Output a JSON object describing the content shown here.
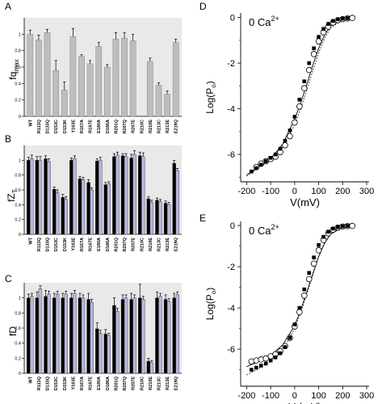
{
  "chart_data": [
    {
      "panel": "A",
      "type": "bar",
      "ylabel": "fq",
      "ylabel_sub": "max",
      "ylim": [
        0,
        1.2
      ],
      "yticks": [
        0,
        0.2,
        0.4,
        0.6,
        0.8,
        1
      ],
      "categories": [
        "WT",
        "R113Q",
        "D133Q",
        "D153C",
        "D153K",
        "Y163E",
        "R167A",
        "R167E",
        "E180A",
        "D186A",
        "R201Q",
        "R207Q",
        "R207E",
        "R210C",
        "R210E",
        "R213C",
        "R213E",
        "E219Q"
      ],
      "series": [
        {
          "values": [
            1.0,
            0.93,
            1.02,
            0.56,
            0.32,
            0.97,
            0.73,
            0.64,
            0.85,
            0.6,
            0.94,
            0.95,
            0.92,
            null,
            0.67,
            0.38,
            0.27,
            0.9
          ],
          "errors": [
            0.05,
            0.06,
            0.04,
            0.12,
            0.1,
            0.1,
            0.02,
            0.04,
            0.05,
            0.03,
            0.08,
            0.07,
            0.08,
            null,
            0.04,
            0.03,
            0.04,
            0.04
          ]
        }
      ],
      "colors": {
        "bar": "#bdbdbd",
        "panel_bg": "#e9e9e9"
      }
    },
    {
      "panel": "B",
      "type": "bar",
      "ylabel": "fZ",
      "ylabel_sub": "T",
      "ylim": [
        0,
        1.2
      ],
      "yticks": [
        0,
        0.2,
        0.4,
        0.6,
        0.8,
        1
      ],
      "categories": [
        "WT",
        "R113Q",
        "D133Q",
        "D153C",
        "D153K",
        "Y163E",
        "R167A",
        "R167E",
        "E180A",
        "D186A",
        "R201Q",
        "R207Q",
        "R207E",
        "R210C",
        "R210E",
        "R213C",
        "R213E",
        "E219Q"
      ],
      "series": [
        {
          "values": [
            1.0,
            1.0,
            1.02,
            0.61,
            0.5,
            1.0,
            0.75,
            0.7,
            0.99,
            0.67,
            1.05,
            1.06,
            1.03,
            1.06,
            0.48,
            0.46,
            0.42,
            0.96
          ],
          "errors": [
            0.04,
            0.05,
            0.04,
            0.03,
            0.04,
            0.03,
            0.03,
            0.04,
            0.03,
            0.03,
            0.04,
            0.03,
            0.05,
            0.05,
            0.03,
            0.03,
            0.03,
            0.04
          ]
        },
        {
          "values": [
            1.02,
            1.0,
            0.98,
            0.56,
            0.47,
            1.02,
            0.74,
            0.6,
            1.0,
            0.68,
            1.07,
            1.05,
            1.08,
            1.05,
            0.43,
            0.44,
            0.4,
            0.86
          ],
          "errors": [
            0.05,
            0.05,
            0.04,
            0.04,
            0.04,
            0.04,
            0.03,
            0.03,
            0.04,
            0.03,
            0.04,
            0.04,
            0.05,
            0.05,
            0.03,
            0.03,
            0.03,
            0.03
          ]
        }
      ],
      "colors": {
        "series1": "#000000",
        "series2": "#b7b7dd",
        "panel_bg": "#e9e9e9"
      }
    },
    {
      "panel": "C",
      "type": "bar",
      "ylabel": "fD",
      "ylim": [
        0,
        1.2
      ],
      "yticks": [
        0,
        0.2,
        0.4,
        0.6,
        0.8,
        1
      ],
      "categories": [
        "WT",
        "R113Q",
        "D133Q",
        "D153C",
        "D153K",
        "Y163E",
        "R167A",
        "R167E",
        "E180A",
        "D186A",
        "R201Q",
        "R207Q",
        "R207E",
        "R210C",
        "R210E",
        "R213C",
        "R213E",
        "E219Q"
      ],
      "series": [
        {
          "values": [
            1.0,
            1.0,
            1.02,
            1.0,
            1.0,
            1.0,
            1.0,
            0.98,
            0.59,
            0.52,
            0.9,
            0.98,
            0.98,
            1.0,
            0.16,
            1.0,
            0.98,
            1.0
          ],
          "errors": [
            0.05,
            0.08,
            0.08,
            0.06,
            0.06,
            0.06,
            0.06,
            0.08,
            0.08,
            0.06,
            0.1,
            0.06,
            0.08,
            0.18,
            0.04,
            0.08,
            0.06,
            0.06
          ]
        },
        {
          "values": [
            1.02,
            1.12,
            1.05,
            1.05,
            1.05,
            1.06,
            1.0,
            0.94,
            0.53,
            0.5,
            0.82,
            1.0,
            1.0,
            0.98,
            0.14,
            1.02,
            0.95,
            1.04
          ],
          "errors": [
            0.04,
            0.04,
            0.04,
            0.04,
            0.04,
            0.04,
            0.04,
            0.04,
            0.04,
            0.03,
            0.04,
            0.04,
            0.04,
            0.04,
            0.03,
            0.04,
            0.04,
            0.04
          ]
        }
      ],
      "colors": {
        "series1": "#000000",
        "series2": "#b7b7dd",
        "panel_bg": "#e9e9e9"
      }
    },
    {
      "panel": "D",
      "type": "scatter",
      "annotation": "0 Ca",
      "annotation_sup": "2+",
      "xlabel": "V(mV)",
      "ylabel": "Log(P",
      "ylabel_sub": "o",
      "ylabel_end": ")",
      "xlim": [
        -225,
        310
      ],
      "ylim": [
        -7.2,
        0.2
      ],
      "xticks": [
        -200,
        -100,
        0,
        100,
        200,
        300
      ],
      "yticks": [
        0,
        -2,
        -4,
        -6
      ],
      "grid": false,
      "series": [
        {
          "marker": "open-circle",
          "x": [
            -160,
            -140,
            -120,
            -100,
            -80,
            -60,
            -40,
            -20,
            0,
            20,
            40,
            60,
            80,
            100,
            120,
            140,
            160,
            180,
            200,
            220,
            240
          ],
          "y": [
            -6.55,
            -6.4,
            -6.3,
            -6.2,
            -6.1,
            -5.9,
            -5.6,
            -5.2,
            -4.6,
            -3.9,
            -3.1,
            -2.3,
            -1.6,
            -1.05,
            -0.65,
            -0.4,
            -0.22,
            -0.12,
            -0.07,
            -0.04,
            -0.02
          ]
        },
        {
          "marker": "filled-square",
          "x": [
            -180,
            -160,
            -140,
            -120,
            -100,
            -80,
            -60,
            -40,
            -20,
            0,
            20,
            40,
            60,
            80,
            100,
            120,
            140,
            160,
            180,
            200,
            220
          ],
          "y": [
            -6.75,
            -6.6,
            -6.45,
            -6.3,
            -6.15,
            -6.0,
            -5.75,
            -5.4,
            -4.95,
            -4.35,
            -3.6,
            -2.8,
            -2.0,
            -1.35,
            -0.85,
            -0.5,
            -0.28,
            -0.15,
            -0.08,
            -0.05,
            -0.03
          ]
        }
      ],
      "fit_curves": [
        {
          "style": "solid",
          "x": [
            -200,
            -150,
            -100,
            -50,
            0,
            25,
            50,
            75,
            100,
            125,
            150,
            200,
            250
          ],
          "y": [
            -6.9,
            -6.55,
            -6.2,
            -5.55,
            -4.45,
            -3.75,
            -2.95,
            -2.1,
            -1.35,
            -0.75,
            -0.38,
            -0.08,
            -0.02
          ]
        },
        {
          "style": "dotted",
          "x": [
            -200,
            -150,
            -100,
            -50,
            0,
            25,
            50,
            75,
            100,
            125,
            150,
            200,
            250
          ],
          "y": [
            -6.95,
            -6.6,
            -6.25,
            -5.7,
            -4.7,
            -4.0,
            -3.2,
            -2.35,
            -1.55,
            -0.9,
            -0.45,
            -0.1,
            -0.02
          ]
        }
      ]
    },
    {
      "panel": "E",
      "type": "scatter",
      "annotation": "0 Ca",
      "annotation_sup": "2+",
      "xlabel": "V (mV)",
      "ylabel": "Log(P",
      "ylabel_sub": "o",
      "ylabel_end": ")",
      "xlim": [
        -225,
        310
      ],
      "ylim": [
        -7.8,
        0.2
      ],
      "xticks": [
        -200,
        -100,
        0,
        100,
        200,
        300
      ],
      "yticks": [
        0,
        -2,
        -4,
        -6
      ],
      "grid": false,
      "series": [
        {
          "marker": "open-circle",
          "x": [
            -180,
            -160,
            -140,
            -120,
            -100,
            -80,
            -60,
            -40,
            -20,
            0,
            20,
            40,
            60,
            80,
            100,
            120,
            140,
            160,
            180,
            200,
            220,
            240
          ],
          "y": [
            -6.6,
            -6.55,
            -6.5,
            -6.45,
            -6.35,
            -6.25,
            -6.1,
            -5.85,
            -5.45,
            -4.9,
            -4.2,
            -3.4,
            -2.6,
            -1.85,
            -1.2,
            -0.7,
            -0.38,
            -0.2,
            -0.1,
            -0.05,
            -0.03,
            -0.02
          ]
        },
        {
          "marker": "filled-square",
          "x": [
            -180,
            -160,
            -140,
            -120,
            -100,
            -80,
            -60,
            -40,
            -20,
            0,
            20,
            40,
            60,
            80,
            100,
            120,
            140,
            160,
            180,
            200,
            220
          ],
          "y": [
            -7.0,
            -6.9,
            -6.8,
            -6.7,
            -6.55,
            -6.4,
            -6.2,
            -5.9,
            -5.45,
            -4.8,
            -4.0,
            -3.1,
            -2.3,
            -1.55,
            -0.95,
            -0.55,
            -0.3,
            -0.15,
            -0.08,
            -0.04,
            -0.02
          ]
        }
      ],
      "fit_curves": [
        {
          "style": "solid",
          "x": [
            -200,
            -150,
            -100,
            -50,
            0,
            25,
            50,
            75,
            100,
            125,
            150,
            200,
            250
          ],
          "y": [
            -6.85,
            -6.6,
            -6.3,
            -5.8,
            -4.85,
            -4.1,
            -3.25,
            -2.35,
            -1.5,
            -0.85,
            -0.42,
            -0.09,
            -0.02
          ]
        },
        {
          "style": "dotted",
          "x": [
            -200,
            -150,
            -100,
            -50,
            0,
            25,
            50,
            75,
            100,
            125,
            150,
            200,
            250
          ],
          "y": [
            -7.25,
            -6.95,
            -6.6,
            -6.05,
            -5.0,
            -4.25,
            -3.35,
            -2.4,
            -1.5,
            -0.82,
            -0.4,
            -0.08,
            -0.02
          ]
        }
      ]
    }
  ]
}
